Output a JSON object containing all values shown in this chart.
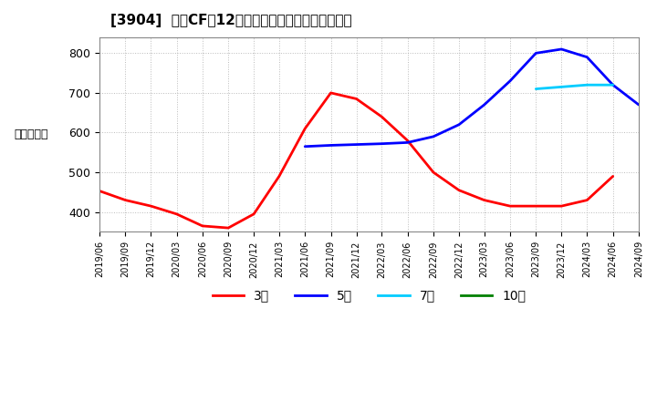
{
  "title": "[3904]  営業CFの12か月移動合計の標準偏差の推移",
  "ylabel": "（百万円）",
  "ylim": [
    350,
    840
  ],
  "yticks": [
    400,
    500,
    600,
    700,
    800
  ],
  "background_color": "#ffffff",
  "grid_color": "#aaaaaa",
  "series": {
    "3year": {
      "color": "#ff0000",
      "label": "3年",
      "dates": [
        "2019/06",
        "2019/09",
        "2019/12",
        "2020/03",
        "2020/06",
        "2020/09",
        "2020/12",
        "2021/03",
        "2021/06",
        "2021/09",
        "2021/12",
        "2022/03",
        "2022/06",
        "2022/09",
        "2022/12",
        "2023/03",
        "2023/06",
        "2023/09",
        "2023/12",
        "2024/03",
        "2024/06",
        "2024/09"
      ],
      "values": [
        453,
        430,
        415,
        395,
        365,
        360,
        395,
        490,
        610,
        700,
        685,
        640,
        580,
        500,
        455,
        430,
        415,
        415,
        415,
        430,
        490,
        null
      ]
    },
    "5year": {
      "color": "#0000ff",
      "label": "5年",
      "dates": [
        "2021/06",
        "2021/09",
        "2021/12",
        "2022/03",
        "2022/06",
        "2022/09",
        "2022/12",
        "2023/03",
        "2023/06",
        "2023/09",
        "2023/12",
        "2024/03",
        "2024/06",
        "2024/09"
      ],
      "values": [
        565,
        568,
        570,
        572,
        575,
        590,
        620,
        670,
        730,
        800,
        810,
        790,
        720,
        670
      ]
    },
    "7year": {
      "color": "#00ccff",
      "label": "7年",
      "dates": [
        "2023/09",
        "2023/12",
        "2024/03",
        "2024/06",
        "2024/09"
      ],
      "values": [
        710,
        715,
        720,
        720,
        null
      ]
    },
    "10year": {
      "color": "#008000",
      "label": "10年",
      "dates": [],
      "values": []
    }
  },
  "xtick_dates": [
    "2019/06",
    "2019/09",
    "2019/12",
    "2020/03",
    "2020/06",
    "2020/09",
    "2020/12",
    "2021/03",
    "2021/06",
    "2021/09",
    "2021/12",
    "2022/03",
    "2022/06",
    "2022/09",
    "2022/12",
    "2023/03",
    "2023/06",
    "2023/09",
    "2023/12",
    "2024/03",
    "2024/06",
    "2024/09"
  ],
  "legend_labels": [
    "3年",
    "5年",
    "7年",
    "10年"
  ],
  "legend_colors": [
    "#ff0000",
    "#0000ff",
    "#00ccff",
    "#008000"
  ]
}
